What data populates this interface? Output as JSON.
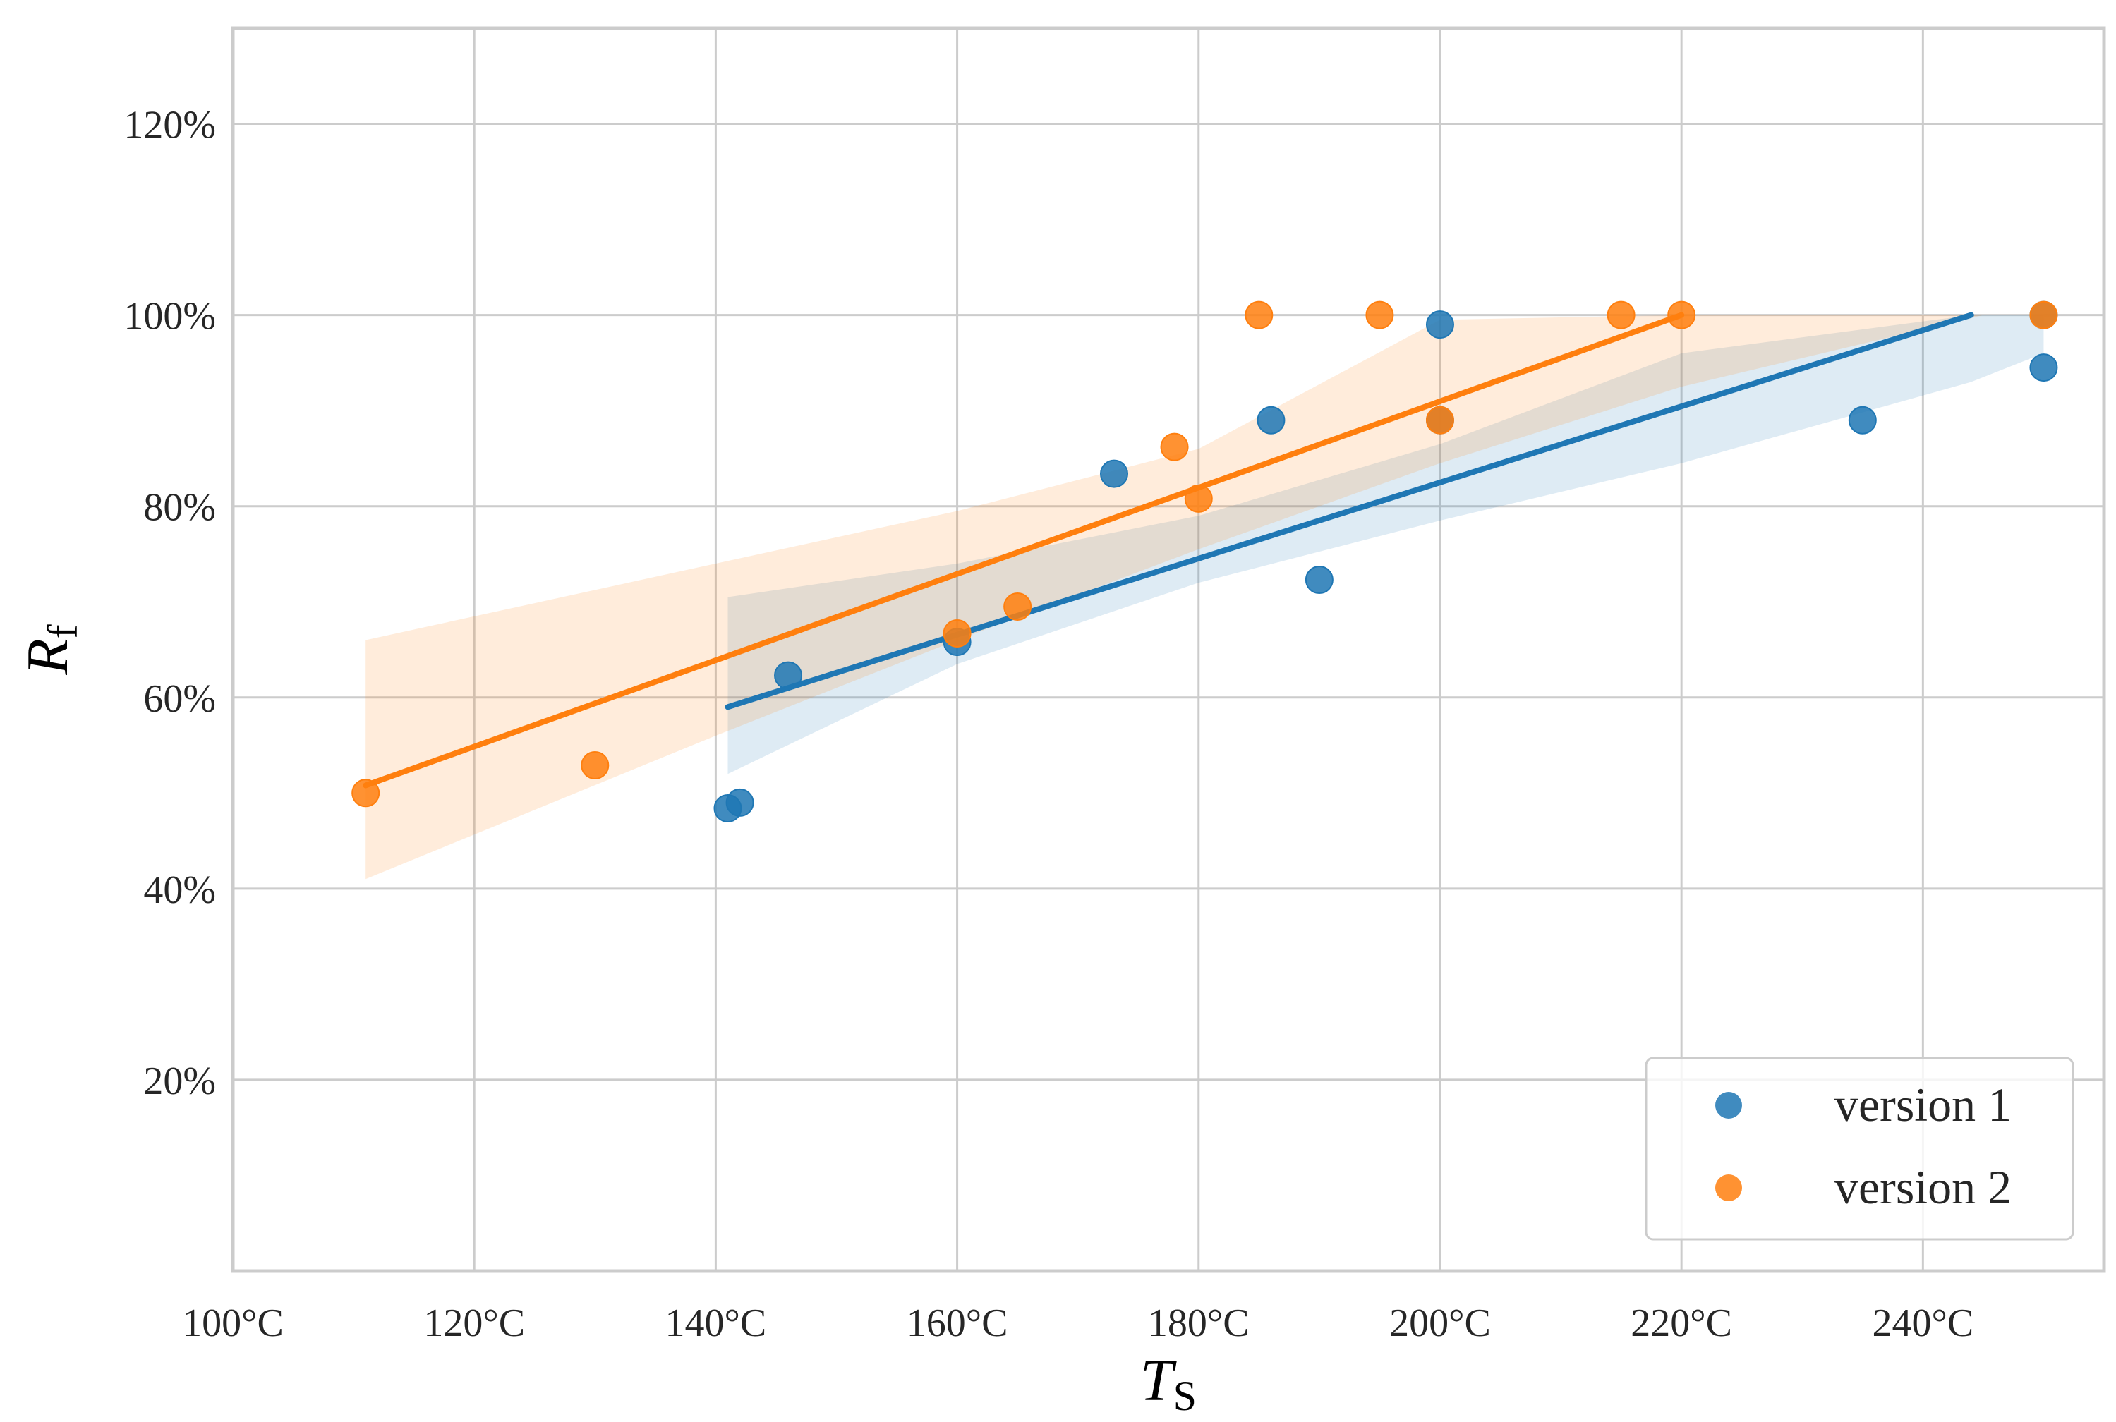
{
  "chart_data": {
    "type": "scatter",
    "title": "",
    "xlabel": {
      "main": "T",
      "sub": "S"
    },
    "ylabel": {
      "main": "R",
      "sub": "f"
    },
    "xlim": [
      100,
      255
    ],
    "ylim": [
      0,
      130
    ],
    "x_ticks": [
      100,
      120,
      140,
      160,
      180,
      200,
      220,
      240
    ],
    "x_tick_labels": [
      "100°C",
      "120°C",
      "140°C",
      "160°C",
      "180°C",
      "200°C",
      "220°C",
      "240°C"
    ],
    "y_ticks": [
      20,
      40,
      60,
      80,
      100,
      120
    ],
    "y_tick_labels": [
      "20%",
      "40%",
      "60%",
      "80%",
      "100%",
      "120%"
    ],
    "grid": true,
    "legend_position": "bottom-right",
    "series": [
      {
        "name": "version 1",
        "color": "#1f77b4",
        "points": [
          [
            141,
            48.4
          ],
          [
            142,
            49.0
          ],
          [
            146,
            62.3
          ],
          [
            160,
            65.8
          ],
          [
            173,
            83.4
          ],
          [
            186,
            89.0
          ],
          [
            190,
            72.3
          ],
          [
            200,
            99.0
          ],
          [
            200,
            89.0
          ],
          [
            235,
            89.0
          ],
          [
            250,
            94.5
          ],
          [
            250,
            100.0
          ]
        ],
        "fit_line": [
          [
            141,
            59.0
          ],
          [
            244,
            100.0
          ]
        ],
        "ci_band": {
          "x": [
            141,
            160,
            180,
            200,
            220,
            244,
            250
          ],
          "lower": [
            52.0,
            63.5,
            72.0,
            78.5,
            84.5,
            93.0,
            96.0
          ],
          "upper": [
            70.5,
            74.0,
            79.0,
            86.5,
            96.0,
            100.0,
            100.0
          ]
        }
      },
      {
        "name": "version 2",
        "color": "#ff7f0e",
        "points": [
          [
            111,
            50.0
          ],
          [
            130,
            52.9
          ],
          [
            160,
            66.7
          ],
          [
            165,
            69.5
          ],
          [
            178,
            86.2
          ],
          [
            180,
            80.8
          ],
          [
            185,
            100.0
          ],
          [
            195,
            100.0
          ],
          [
            200,
            89.0
          ],
          [
            215,
            100.0
          ],
          [
            220,
            100.0
          ],
          [
            250,
            100.0
          ]
        ],
        "fit_line": [
          [
            111,
            50.8
          ],
          [
            220,
            100.0
          ]
        ],
        "ci_band": {
          "x": [
            111,
            140,
            160,
            180,
            200,
            220,
            245
          ],
          "lower": [
            41.0,
            56.0,
            66.0,
            75.5,
            84.5,
            92.5,
            100.0
          ],
          "upper": [
            66.0,
            74.0,
            79.5,
            86.0,
            99.5,
            100.0,
            100.0
          ]
        }
      }
    ]
  }
}
